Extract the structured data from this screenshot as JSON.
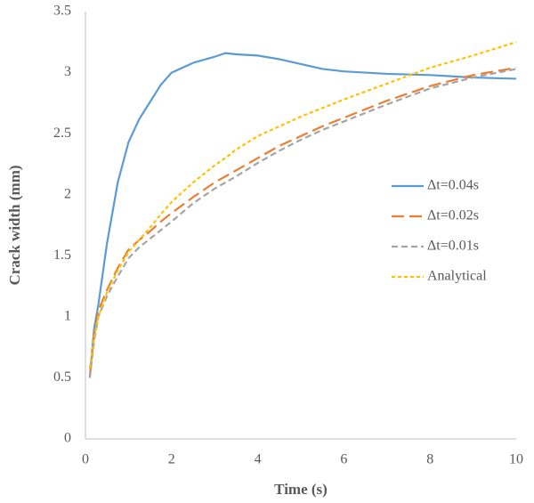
{
  "chart_data": {
    "type": "line",
    "xlabel": "Time (s)",
    "ylabel": "Crack width (mm)",
    "x": [
      0.1,
      0.2,
      0.3,
      0.5,
      0.75,
      1,
      1.25,
      1.5,
      1.75,
      2,
      2.5,
      3,
      3.25,
      3.5,
      4,
      4.5,
      5,
      5.5,
      6,
      7,
      8,
      9,
      10
    ],
    "series": [
      {
        "name": "Δt=0.04s",
        "color": "#5b9bd5",
        "dash": "solid",
        "values": [
          0.5,
          0.9,
          1.1,
          1.6,
          2.1,
          2.43,
          2.62,
          2.76,
          2.9,
          3.0,
          3.08,
          3.13,
          3.16,
          3.15,
          3.14,
          3.11,
          3.07,
          3.03,
          3.01,
          2.99,
          2.98,
          2.96,
          2.95
        ]
      },
      {
        "name": "Δt=0.02s",
        "color": "#ed7d31",
        "dash": "long",
        "values": [
          0.5,
          0.85,
          1.05,
          1.22,
          1.4,
          1.55,
          1.63,
          1.7,
          1.78,
          1.85,
          1.98,
          2.1,
          2.15,
          2.2,
          2.3,
          2.4,
          2.48,
          2.56,
          2.63,
          2.77,
          2.89,
          2.98,
          3.04
        ]
      },
      {
        "name": "Δt=0.01s",
        "color": "#a5a5a5",
        "dash": "medium",
        "values": [
          0.5,
          0.8,
          1.0,
          1.17,
          1.33,
          1.48,
          1.57,
          1.64,
          1.71,
          1.78,
          1.93,
          2.05,
          2.1,
          2.15,
          2.26,
          2.36,
          2.45,
          2.53,
          2.6,
          2.74,
          2.87,
          2.96,
          3.03
        ]
      },
      {
        "name": "Analytical",
        "color": "#ffc000",
        "dash": "short",
        "values": [
          0.58,
          0.82,
          1.0,
          1.2,
          1.38,
          1.53,
          1.63,
          1.73,
          1.84,
          1.94,
          2.1,
          2.24,
          2.3,
          2.37,
          2.48,
          2.56,
          2.64,
          2.71,
          2.78,
          2.91,
          3.04,
          3.14,
          3.25
        ]
      }
    ],
    "xlim": [
      0,
      10
    ],
    "xticks": [
      0,
      2,
      4,
      6,
      8,
      10
    ],
    "ylim": [
      0,
      3.5
    ],
    "yticks": [
      0,
      0.5,
      1,
      1.5,
      2,
      2.5,
      3,
      3.5
    ],
    "grid": false,
    "legend": "right"
  }
}
